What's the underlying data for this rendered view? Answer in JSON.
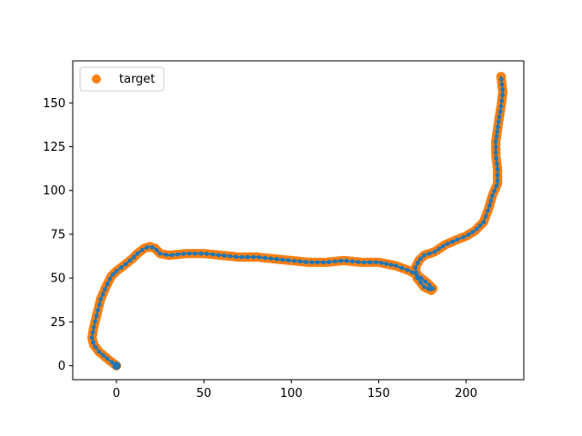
{
  "chart_data": {
    "type": "scatter",
    "xlim": [
      -25,
      233
    ],
    "ylim": [
      -8,
      174
    ],
    "xticks": [
      0,
      50,
      100,
      150,
      200
    ],
    "yticks": [
      0,
      25,
      50,
      75,
      100,
      125,
      150
    ],
    "grid": false,
    "legend": {
      "placement": "upper-left",
      "entries": [
        "target"
      ]
    },
    "colors": {
      "blue": "#1f77b4",
      "orange": "#ff7f0e"
    },
    "path_points": [
      [
        0,
        0
      ],
      [
        -4,
        3
      ],
      [
        -10,
        8
      ],
      [
        -13,
        12
      ],
      [
        -14,
        16
      ],
      [
        -13,
        22
      ],
      [
        -11,
        30
      ],
      [
        -9,
        38
      ],
      [
        -6,
        45
      ],
      [
        -3,
        51
      ],
      [
        0,
        54
      ],
      [
        4,
        57
      ],
      [
        9,
        61
      ],
      [
        12,
        64
      ],
      [
        16,
        67
      ],
      [
        19,
        68
      ],
      [
        22,
        67
      ],
      [
        25,
        64
      ],
      [
        30,
        63
      ],
      [
        40,
        64
      ],
      [
        50,
        64
      ],
      [
        60,
        63
      ],
      [
        70,
        62
      ],
      [
        80,
        62
      ],
      [
        90,
        61
      ],
      [
        100,
        60
      ],
      [
        110,
        59
      ],
      [
        120,
        59
      ],
      [
        130,
        60
      ],
      [
        140,
        59
      ],
      [
        150,
        59
      ],
      [
        160,
        57
      ],
      [
        168,
        54
      ],
      [
        173,
        51
      ],
      [
        178,
        47
      ],
      [
        181,
        44
      ],
      [
        180,
        43
      ],
      [
        176,
        45
      ],
      [
        172,
        50
      ],
      [
        171,
        56
      ],
      [
        173,
        60
      ],
      [
        176,
        63
      ],
      [
        182,
        65
      ],
      [
        188,
        69
      ],
      [
        195,
        72
      ],
      [
        200,
        74
      ],
      [
        205,
        77
      ],
      [
        210,
        82
      ],
      [
        213,
        90
      ],
      [
        215,
        97
      ],
      [
        218,
        104
      ],
      [
        218,
        112
      ],
      [
        217,
        120
      ],
      [
        217,
        128
      ],
      [
        218,
        135
      ],
      [
        219,
        142
      ],
      [
        220,
        148
      ],
      [
        221,
        156
      ],
      [
        220,
        165
      ]
    ],
    "series": [
      {
        "name": "target",
        "color": "#ff7f0e",
        "marker": "circle"
      }
    ]
  }
}
